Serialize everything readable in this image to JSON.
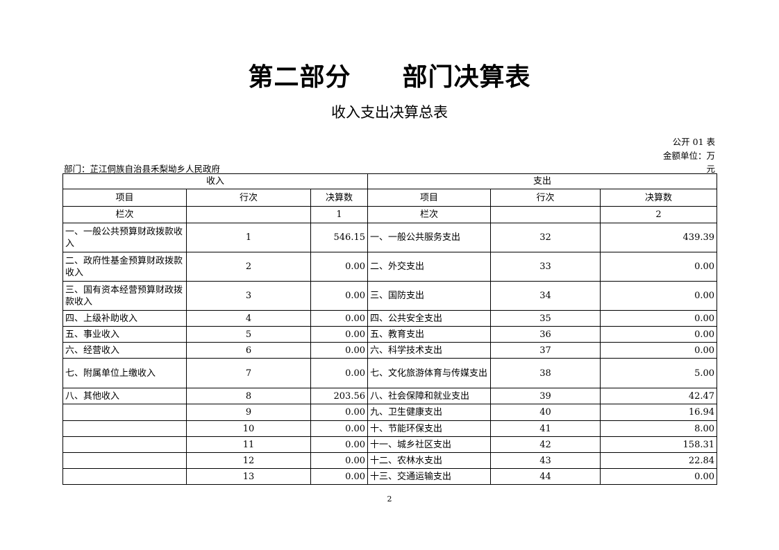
{
  "title": "第二部分　　部门决算表",
  "subtitle": "收入支出决算总表",
  "form_no": "公开 01 表",
  "unit_label": "金额单位：万",
  "unit_label_cont": "元",
  "department": "部门：芷江侗族自治县禾梨坳乡人民政府",
  "table": {
    "group_income": "收入",
    "group_expense": "支出",
    "headers": [
      "项目",
      "行次",
      "决算数",
      "项目",
      "行次",
      "决算数"
    ],
    "column_row": [
      "栏次",
      "",
      "1",
      "栏次",
      "",
      "2"
    ],
    "rows": [
      [
        "一、一般公共预算财政拨款收入",
        "1",
        "546.15",
        "一、一般公共服务支出",
        "32",
        "439.39"
      ],
      [
        "二、政府性基金预算财政拨款收入",
        "2",
        "0.00",
        "二、外交支出",
        "33",
        "0.00"
      ],
      [
        "三、国有资本经营预算财政拨款收入",
        "3",
        "0.00",
        "三、国防支出",
        "34",
        "0.00"
      ],
      [
        "四、上级补助收入",
        "4",
        "0.00",
        "四、公共安全支出",
        "35",
        "0.00"
      ],
      [
        "五、事业收入",
        "5",
        "0.00",
        "五、教育支出",
        "36",
        "0.00"
      ],
      [
        "六、经营收入",
        "6",
        "0.00",
        "六、科学技术支出",
        "37",
        "0.00"
      ],
      [
        "七、附属单位上缴收入",
        "7",
        "0.00",
        "七、文化旅游体育与传媒支出",
        "38",
        "5.00"
      ],
      [
        "八、其他收入",
        "8",
        "203.56",
        "八、社会保障和就业支出",
        "39",
        "42.47"
      ],
      [
        "",
        "9",
        "0.00",
        "九、卫生健康支出",
        "40",
        "16.94"
      ],
      [
        "",
        "10",
        "0.00",
        "十、节能环保支出",
        "41",
        "8.00"
      ],
      [
        "",
        "11",
        "0.00",
        "十一、城乡社区支出",
        "42",
        "158.31"
      ],
      [
        "",
        "12",
        "0.00",
        "十二、农林水支出",
        "43",
        "22.84"
      ],
      [
        "",
        "13",
        "0.00",
        "十三、交通运输支出",
        "44",
        "0.00"
      ]
    ]
  },
  "page_number": "2"
}
